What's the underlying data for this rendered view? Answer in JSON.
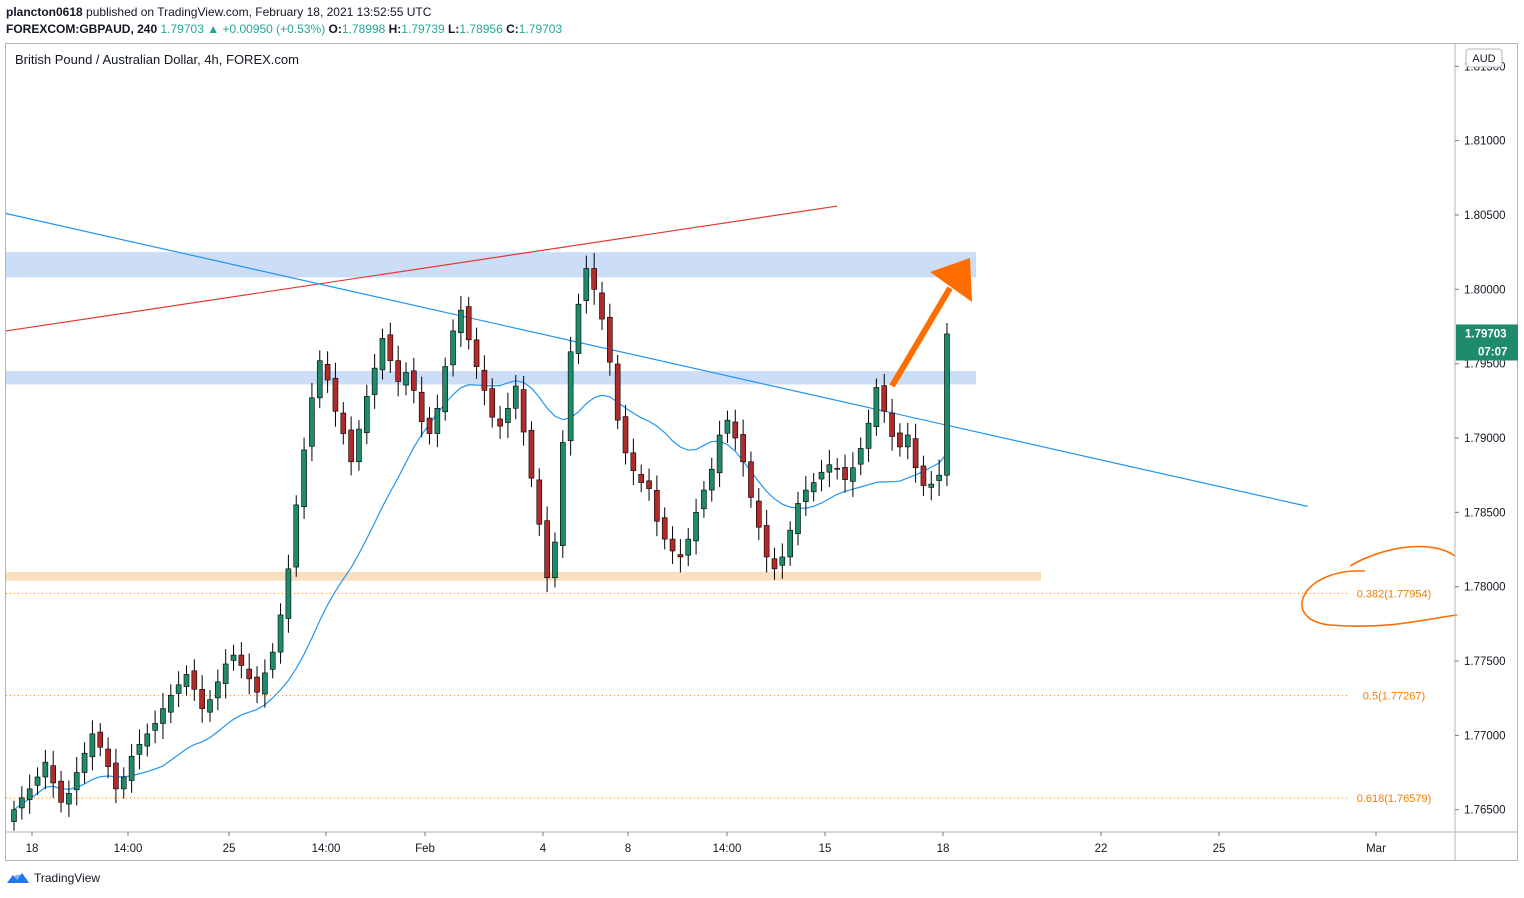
{
  "header": {
    "author": "plancton0618",
    "published_text": "published on TradingView.com, February 18, 2021 13:52:55 UTC",
    "symbol": "FOREXCOM:GBPAUD, 240",
    "last": "1.79703",
    "change": "+0.00950 (+0.53%)",
    "o_label": "O:",
    "o": "1.78998",
    "h_label": "H:",
    "h": "1.79739",
    "l_label": "L:",
    "l": "1.78956",
    "c_label": "C:",
    "c": "1.79703"
  },
  "legend_title": "British Pound / Australian Dollar, 4h, FOREX.com",
  "currency_label": "AUD",
  "price_tag": {
    "value": "1.79703",
    "countdown": "07:07"
  },
  "footer": {
    "brand": "TradingView"
  },
  "colors": {
    "up": "#26a69a",
    "down": "#ef5350",
    "body_up": "#1e8b6b",
    "body_down": "#b22a2a",
    "ma": "#2196f3",
    "zone": "#c3d7f7",
    "support": "#f9d9b4",
    "fib": "#f57c00",
    "arrow": "#ff6d00",
    "red_line": "#e53935"
  },
  "chart_data": {
    "type": "candlestick",
    "title": "British Pound / Australian Dollar, 4h, FOREX.com",
    "ylabel": "AUD",
    "ylim": [
      1.7635,
      1.8165
    ],
    "y_ticks": [
      "1.81500",
      "1.81000",
      "1.80500",
      "1.80000",
      "1.79500",
      "1.79000",
      "1.78500",
      "1.78000",
      "1.77500",
      "1.77000",
      "1.76500"
    ],
    "x_ticks": [
      "18",
      "14:00",
      "25",
      "14:00",
      "Feb",
      "4",
      "8",
      "14:00",
      "15",
      "18",
      "22",
      "25",
      "Mar"
    ],
    "fib_levels": [
      {
        "label": "0.382(1.77954)",
        "price": 1.77954
      },
      {
        "label": "0.5(1.77267)",
        "price": 1.77267
      },
      {
        "label": "0.618(1.76579)",
        "price": 1.76579
      }
    ],
    "zones": [
      {
        "name": "resistance",
        "top": 1.8025,
        "bottom": 1.8008
      },
      {
        "name": "mid",
        "top": 1.7945,
        "bottom": 1.7936
      },
      {
        "name": "support",
        "top": 1.781,
        "bottom": 1.7804
      }
    ],
    "trendlines": [
      {
        "name": "red-resistance",
        "points": [
          [
            0,
            1.7972
          ],
          [
            105,
            1.8056
          ]
        ]
      },
      {
        "name": "blue-descending",
        "points": [
          [
            0,
            1.8051
          ],
          [
            165,
            1.7854
          ]
        ]
      }
    ],
    "close_series": [
      1.765,
      1.7658,
      1.7664,
      1.7672,
      1.7682,
      1.7668,
      1.7655,
      1.7661,
      1.7675,
      1.7688,
      1.7701,
      1.7692,
      1.7679,
      1.7664,
      1.7672,
      1.7686,
      1.7694,
      1.7701,
      1.7708,
      1.7718,
      1.7727,
      1.7734,
      1.7741,
      1.7731,
      1.7718,
      1.7724,
      1.7736,
      1.7748,
      1.7754,
      1.7747,
      1.7738,
      1.7729,
      1.7742,
      1.7756,
      1.7781,
      1.7812,
      1.7855,
      1.7892,
      1.7927,
      1.7952,
      1.7939,
      1.7918,
      1.7903,
      1.7884,
      1.7906,
      1.7928,
      1.7947,
      1.7967,
      1.7952,
      1.7938,
      1.7944,
      1.7932,
      1.7911,
      1.7903,
      1.792,
      1.7948,
      1.7972,
      1.7986,
      1.7966,
      1.7948,
      1.7932,
      1.7914,
      1.7908,
      1.792,
      1.7935,
      1.7904,
      1.7873,
      1.7842,
      1.7806,
      1.783,
      1.7897,
      1.7958,
      1.799,
      1.8014,
      1.8,
      1.798,
      1.7951,
      1.7912,
      1.789,
      1.7878,
      1.787,
      1.7866,
      1.7844,
      1.7832,
      1.7824,
      1.782,
      1.7832,
      1.785,
      1.7865,
      1.7879,
      1.7902,
      1.7912,
      1.79,
      1.7884,
      1.786,
      1.784,
      1.782,
      1.7812,
      1.782,
      1.7838,
      1.7856,
      1.7865,
      1.787,
      1.7877,
      1.7882,
      1.7879,
      1.7872,
      1.788,
      1.7893,
      1.791,
      1.7934,
      1.7918,
      1.7901,
      1.7894,
      1.7902,
      1.788,
      1.7868,
      1.7869,
      1.7875,
      1.797
    ]
  }
}
